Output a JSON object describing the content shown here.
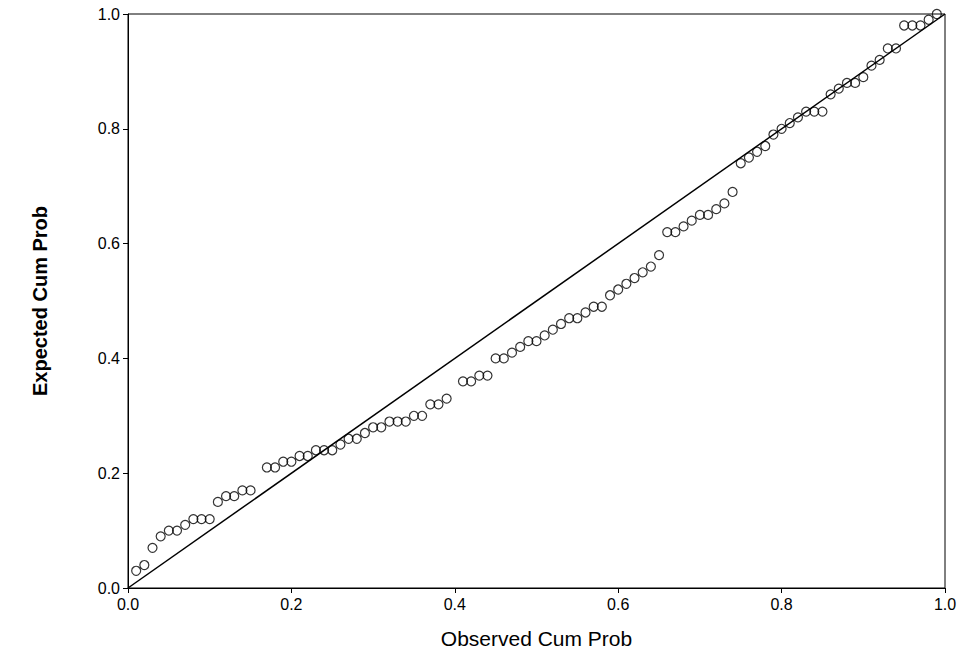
{
  "chart_data": {
    "type": "scatter",
    "x_label": "Observed Cum Prob",
    "y_label": "Expected Cum Prob",
    "xlim": [
      0,
      1
    ],
    "ylim": [
      0,
      1
    ],
    "xticks": [
      {
        "value": 0,
        "label": "0.0"
      },
      {
        "value": 0.2,
        "label": "0.2"
      },
      {
        "value": 0.4,
        "label": "0.4"
      },
      {
        "value": 0.6,
        "label": "0.6"
      },
      {
        "value": 0.8,
        "label": "0.8"
      },
      {
        "value": 1,
        "label": "1.0"
      }
    ],
    "yticks": [
      {
        "value": 0,
        "label": "0.0"
      },
      {
        "value": 0.2,
        "label": "0.2"
      },
      {
        "value": 0.4,
        "label": "0.4"
      },
      {
        "value": 0.6,
        "label": "0.6"
      },
      {
        "value": 0.8,
        "label": "0.8"
      },
      {
        "value": 1,
        "label": "1.0"
      }
    ],
    "grid": false,
    "series": [
      {
        "type": "scatter",
        "marker": "circle",
        "color": "#000000",
        "x": [
          0.01,
          0.02,
          0.03,
          0.04,
          0.05,
          0.06,
          0.07,
          0.08,
          0.09,
          0.1,
          0.11,
          0.12,
          0.13,
          0.14,
          0.15,
          0.17,
          0.18,
          0.19,
          0.2,
          0.21,
          0.22,
          0.23,
          0.24,
          0.25,
          0.26,
          0.27,
          0.28,
          0.29,
          0.3,
          0.31,
          0.32,
          0.33,
          0.34,
          0.35,
          0.36,
          0.37,
          0.38,
          0.39,
          0.41,
          0.42,
          0.43,
          0.44,
          0.45,
          0.46,
          0.47,
          0.48,
          0.49,
          0.5,
          0.51,
          0.52,
          0.53,
          0.54,
          0.55,
          0.56,
          0.57,
          0.58,
          0.59,
          0.6,
          0.61,
          0.62,
          0.63,
          0.64,
          0.65,
          0.66,
          0.67,
          0.68,
          0.69,
          0.7,
          0.71,
          0.72,
          0.73,
          0.74,
          0.75,
          0.76,
          0.77,
          0.78,
          0.79,
          0.8,
          0.81,
          0.82,
          0.83,
          0.84,
          0.85,
          0.86,
          0.87,
          0.88,
          0.89,
          0.9,
          0.91,
          0.92,
          0.93,
          0.94,
          0.95,
          0.96,
          0.97,
          0.98,
          0.99
        ],
        "values": [
          0.03,
          0.04,
          0.07,
          0.09,
          0.1,
          0.1,
          0.11,
          0.12,
          0.12,
          0.12,
          0.15,
          0.16,
          0.16,
          0.17,
          0.17,
          0.21,
          0.21,
          0.22,
          0.22,
          0.23,
          0.23,
          0.24,
          0.24,
          0.24,
          0.25,
          0.26,
          0.26,
          0.27,
          0.28,
          0.28,
          0.29,
          0.29,
          0.29,
          0.3,
          0.3,
          0.32,
          0.32,
          0.33,
          0.36,
          0.36,
          0.37,
          0.37,
          0.4,
          0.4,
          0.41,
          0.42,
          0.43,
          0.43,
          0.44,
          0.45,
          0.46,
          0.47,
          0.47,
          0.48,
          0.49,
          0.49,
          0.51,
          0.52,
          0.53,
          0.54,
          0.55,
          0.56,
          0.58,
          0.62,
          0.62,
          0.63,
          0.64,
          0.65,
          0.65,
          0.66,
          0.67,
          0.69,
          0.74,
          0.75,
          0.76,
          0.77,
          0.79,
          0.8,
          0.81,
          0.82,
          0.83,
          0.83,
          0.83,
          0.86,
          0.87,
          0.88,
          0.88,
          0.89,
          0.91,
          0.92,
          0.94,
          0.94,
          0.98,
          0.98,
          0.98,
          0.99,
          1.0
        ]
      },
      {
        "type": "line",
        "line_style": "solid",
        "color": "#000000",
        "x": [
          0,
          1
        ],
        "values": [
          0,
          1
        ]
      }
    ]
  }
}
